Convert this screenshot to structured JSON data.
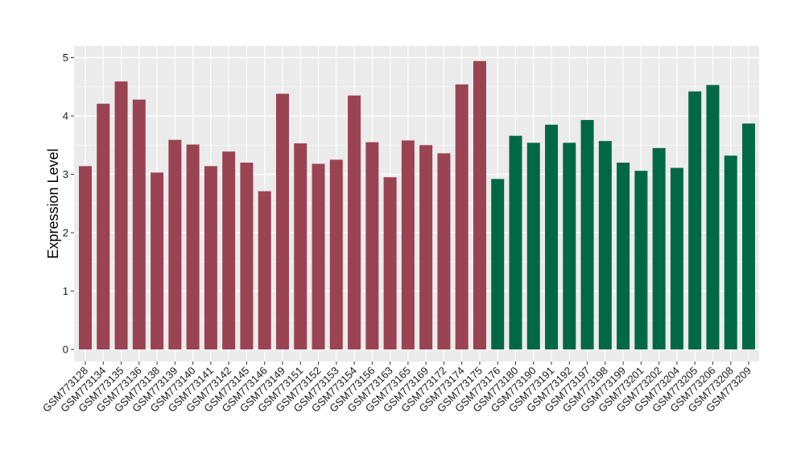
{
  "chart_data": {
    "type": "bar",
    "title": "",
    "xlabel": "",
    "ylabel": "Expression Level",
    "ylim": [
      -0.2,
      5.1
    ],
    "yticks": [
      0,
      1,
      2,
      3,
      4,
      5
    ],
    "grid": true,
    "legend": "none",
    "colors": {
      "panel_bg": "#ebebeb",
      "grid": "#ffffff",
      "group1": "#9a4352",
      "group2": "#016845"
    },
    "categories": [
      "GSM773128",
      "GSM773134",
      "GSM773135",
      "GSM773136",
      "GSM773138",
      "GSM773139",
      "GSM773140",
      "GSM773141",
      "GSM773142",
      "GSM773145",
      "GSM773146",
      "GSM773149",
      "GSM773151",
      "GSM773152",
      "GSM773153",
      "GSM773154",
      "GSM773156",
      "GSM773163",
      "GSM773165",
      "GSM773169",
      "GSM773172",
      "GSM773174",
      "GSM773175",
      "GSM773176",
      "GSM773180",
      "GSM773190",
      "GSM773191",
      "GSM773192",
      "GSM773197",
      "GSM773198",
      "GSM773199",
      "GSM773201",
      "GSM773202",
      "GSM773204",
      "GSM773205",
      "GSM773206",
      "GSM773208",
      "GSM773209"
    ],
    "values": [
      3.14,
      4.21,
      4.59,
      4.28,
      3.03,
      3.59,
      3.51,
      3.14,
      3.39,
      3.2,
      2.71,
      4.38,
      3.53,
      3.18,
      3.25,
      4.35,
      3.55,
      2.95,
      3.58,
      3.5,
      3.36,
      4.54,
      4.94,
      2.92,
      3.66,
      3.54,
      3.85,
      3.54,
      3.93,
      3.57,
      3.2,
      3.06,
      3.45,
      3.11,
      4.42,
      4.53,
      3.32,
      3.87
    ],
    "group": [
      1,
      1,
      1,
      1,
      1,
      1,
      1,
      1,
      1,
      1,
      1,
      1,
      1,
      1,
      1,
      1,
      1,
      1,
      1,
      1,
      1,
      1,
      1,
      2,
      2,
      2,
      2,
      2,
      2,
      2,
      2,
      2,
      2,
      2,
      2,
      2,
      2,
      2
    ]
  }
}
